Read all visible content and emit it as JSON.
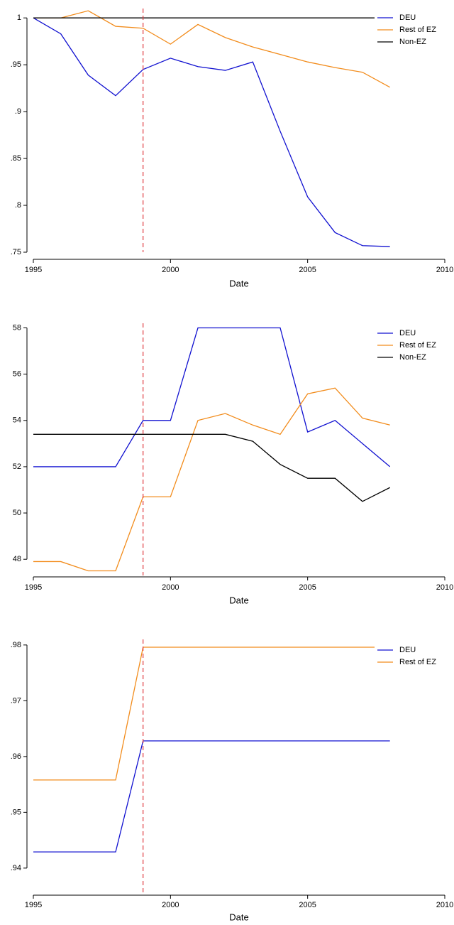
{
  "chart_data": [
    {
      "type": "line",
      "xlabel": "Date",
      "legend": "upper right",
      "x": [
        1995,
        1996,
        1997,
        1998,
        1999,
        2000,
        2001,
        2002,
        2003,
        2004,
        2005,
        2006,
        2007,
        2008
      ],
      "xlim": [
        1995,
        2010
      ],
      "xticks": [
        1995,
        2000,
        2005,
        2010
      ],
      "ylim": [
        0.75,
        1.01
      ],
      "yticks": [
        1,
        {
          "value": 0.95,
          "label": ".95"
        },
        {
          "value": 0.9,
          "label": ".9"
        },
        {
          "value": 0.85,
          "label": ".85"
        },
        {
          "value": 0.8,
          "label": ".8"
        },
        {
          "value": 0.75,
          "label": ".75"
        }
      ],
      "vline": 1999,
      "vline_color": "#e0393e",
      "series": [
        {
          "name": "DEU",
          "color": "#1010d0",
          "values": [
            1.0,
            0.983,
            0.939,
            0.917,
            0.945,
            0.957,
            0.948,
            0.944,
            0.953,
            0.879,
            0.809,
            0.771,
            0.757,
            0.756
          ]
        },
        {
          "name": "Rest of EZ",
          "color": "#f28c1c",
          "values": [
            1.0,
            1.0,
            1.0076,
            0.991,
            0.989,
            0.972,
            0.993,
            0.979,
            0.969,
            0.961,
            0.953,
            0.947,
            0.942,
            0.926
          ]
        },
        {
          "name": "Non-EZ",
          "color": "#000000",
          "values": [
            1,
            1,
            1,
            1,
            1,
            1,
            1,
            1,
            1,
            1,
            1,
            1,
            1,
            1
          ]
        }
      ]
    },
    {
      "type": "line",
      "xlabel": "Date",
      "legend": "upper right",
      "x": [
        1995,
        1996,
        1997,
        1998,
        1999,
        2000,
        2001,
        2002,
        2003,
        2004,
        2005,
        2006,
        2007,
        2008
      ],
      "xlim": [
        1995,
        2010
      ],
      "xticks": [
        1995,
        2000,
        2005,
        2010
      ],
      "ylim": [
        47.3,
        58.2
      ],
      "yticks": [
        48,
        50,
        52,
        54,
        56,
        58
      ],
      "vline": 1999,
      "vline_color": "#e0393e",
      "series": [
        {
          "name": "DEU",
          "color": "#1010d0",
          "values": [
            52,
            52,
            52,
            52,
            54,
            54,
            58,
            58,
            58,
            58,
            53.5,
            54,
            53,
            52
          ]
        },
        {
          "name": "Rest of EZ",
          "color": "#f28c1c",
          "values": [
            47.9,
            47.9,
            47.5,
            47.5,
            50.7,
            50.7,
            54.0,
            54.3,
            53.8,
            53.4,
            55.15,
            55.4,
            54.1,
            53.8
          ]
        },
        {
          "name": "Non-EZ",
          "color": "#000000",
          "values": [
            53.4,
            53.4,
            53.4,
            53.4,
            53.4,
            53.4,
            53.4,
            53.4,
            53.1,
            52.1,
            51.5,
            51.5,
            50.5,
            51.1
          ]
        }
      ]
    },
    {
      "type": "line",
      "xlabel": "Date",
      "legend": "upper right",
      "x": [
        1995,
        1996,
        1997,
        1998,
        1999,
        2000,
        2001,
        2002,
        2003,
        2004,
        2005,
        2006,
        2007,
        2008
      ],
      "xlim": [
        1995,
        2010
      ],
      "xticks": [
        1995,
        2000,
        2005,
        2010
      ],
      "ylim": [
        0.9354,
        0.981
      ],
      "yticks": [
        {
          "value": 0.98,
          "label": ".98"
        },
        {
          "value": 0.97,
          "label": ".97"
        },
        {
          "value": 0.96,
          "label": ".96"
        },
        {
          "value": 0.95,
          "label": ".95"
        },
        {
          "value": 0.94,
          "label": ".94"
        }
      ],
      "vline": 1999,
      "vline_color": "#e0393e",
      "series": [
        {
          "name": "DEU",
          "color": "#1010d0",
          "values": [
            0.9429,
            0.9429,
            0.9429,
            0.9429,
            0.9628,
            0.9628,
            0.9628,
            0.9628,
            0.9628,
            0.9628,
            0.9628,
            0.9628,
            0.9628,
            0.9628
          ]
        },
        {
          "name": "Rest of EZ",
          "color": "#f28c1c",
          "values": [
            0.9558,
            0.9558,
            0.9558,
            0.9558,
            0.9796,
            0.9796,
            0.9796,
            0.9796,
            0.9796,
            0.9796,
            0.9796,
            0.9796,
            0.9796,
            0.9796
          ]
        }
      ]
    }
  ]
}
